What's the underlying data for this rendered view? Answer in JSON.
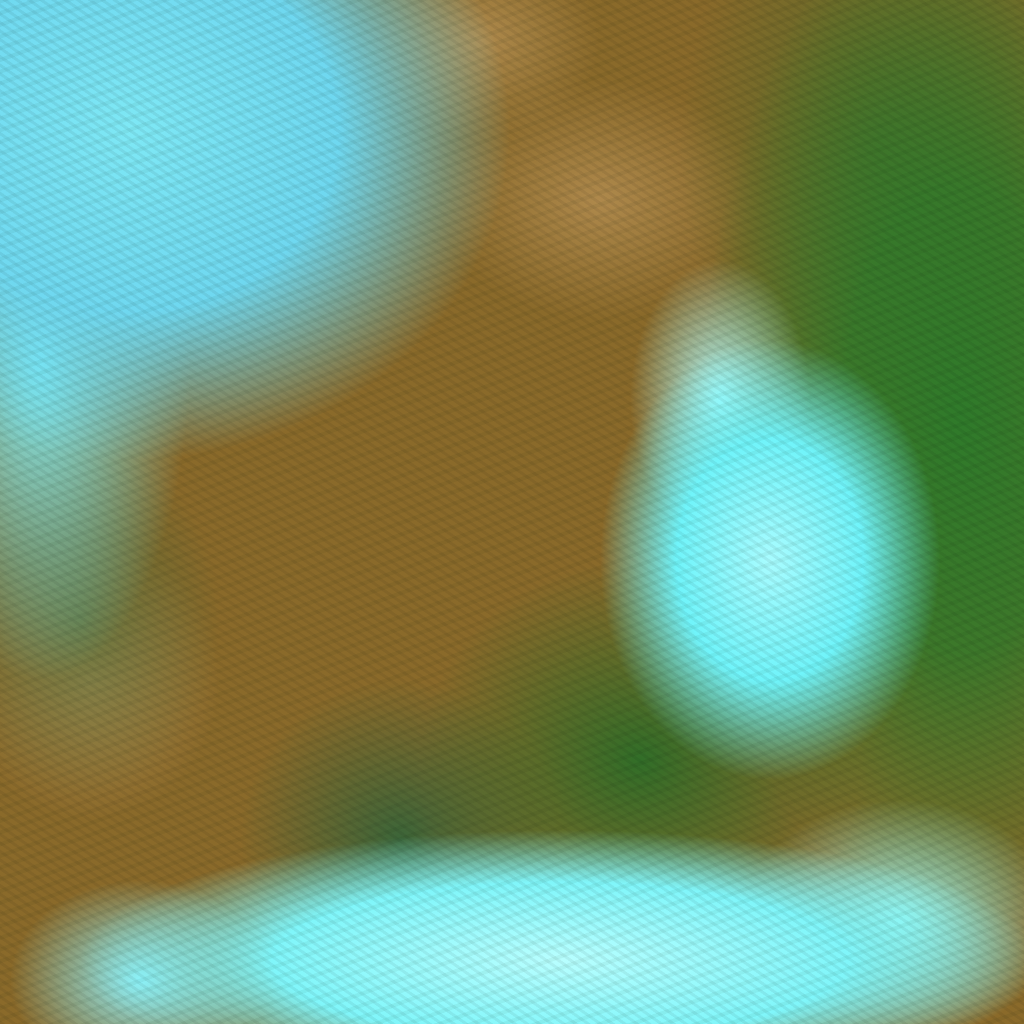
{
  "image": {
    "kind": "false-color satellite imagery",
    "colors": {
      "land_arid": "#8a6a2a",
      "vegetation": "#2f7a2a",
      "cloud_cover": "#7ef0f8",
      "cloud_bright": "#b8ffff"
    }
  }
}
